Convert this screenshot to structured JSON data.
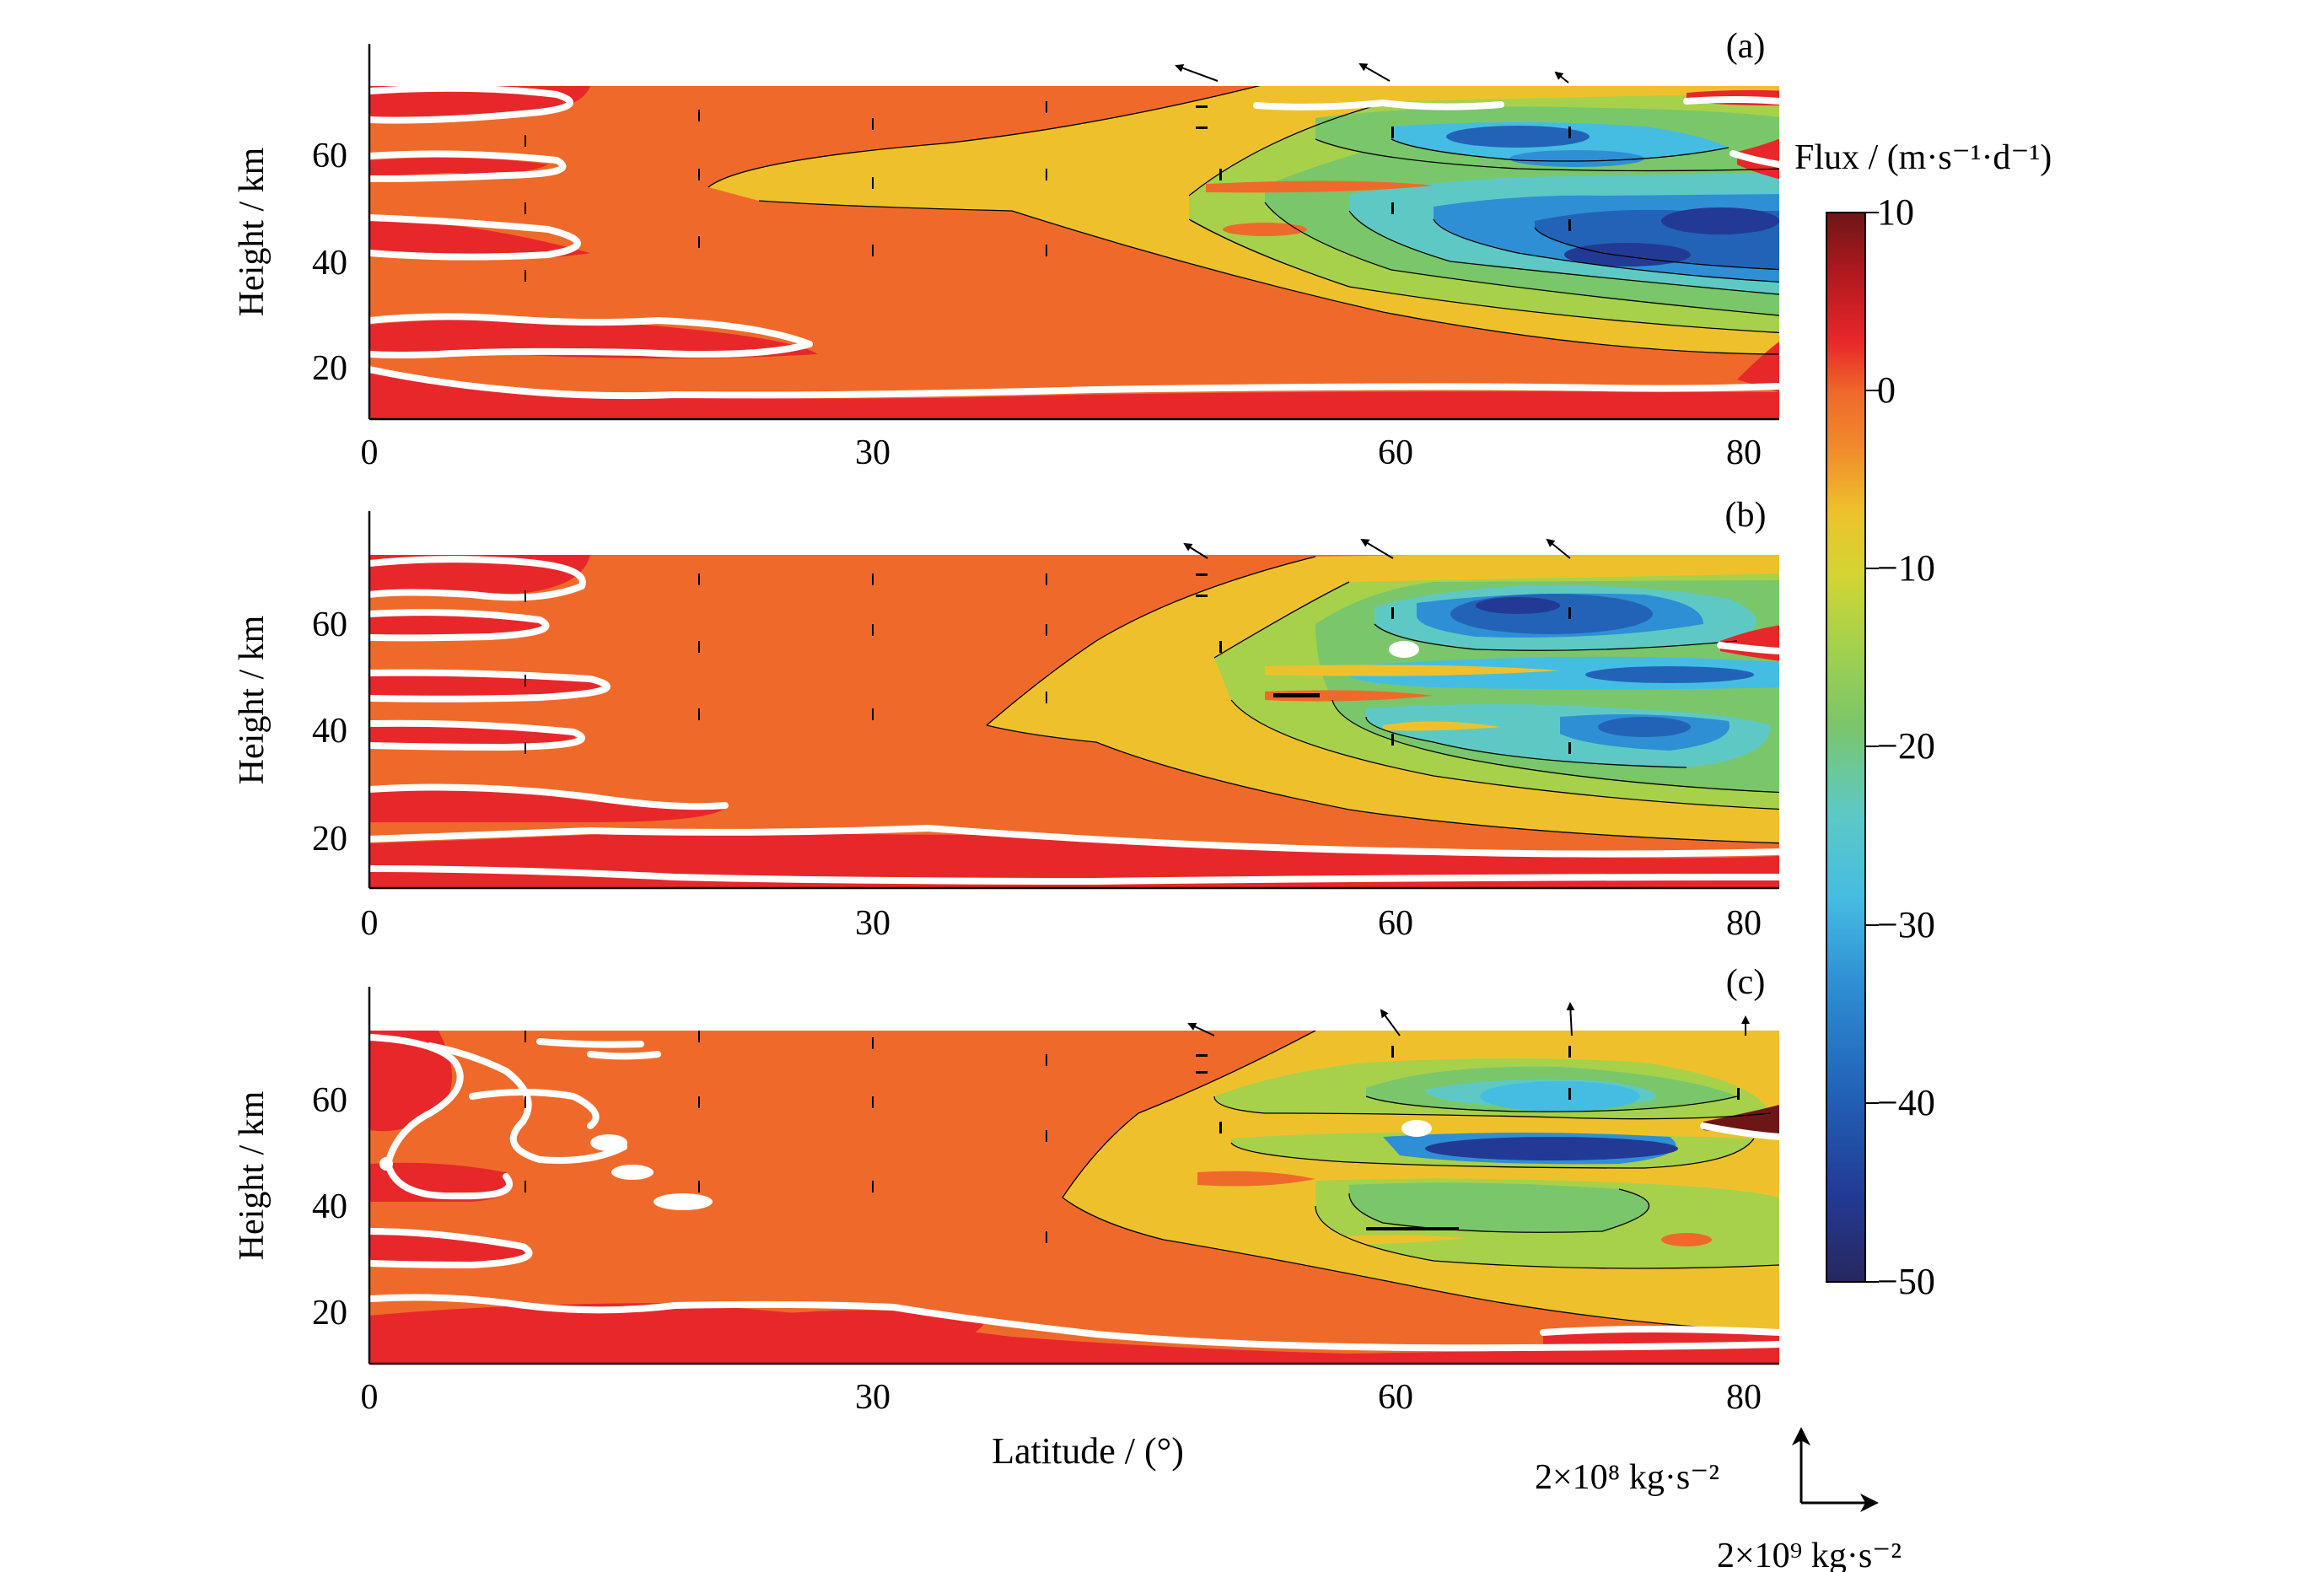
{
  "chart_data": {
    "type": "heatmap",
    "subtype": "filled-contour with vector overlay",
    "panels": [
      {
        "label": "(a)",
        "ylabel": "Height / km",
        "xlim": [
          0,
          81
        ],
        "ylim": [
          10,
          73
        ],
        "xticks": [
          0,
          30,
          60,
          80
        ],
        "yticks": [
          20,
          40,
          60
        ],
        "zero_contour": "white",
        "minima": [
          {
            "lat": 72,
            "height": 45,
            "flux": -48
          },
          {
            "lat": 71,
            "height": 41,
            "flux": -48
          },
          {
            "lat": 68,
            "height": 62,
            "flux": -38
          }
        ],
        "vectors": [
          {
            "lat": 48,
            "height": 75,
            "dir": "up-left"
          },
          {
            "lat": 58,
            "height": 75,
            "dir": "up-left"
          },
          {
            "lat": 68,
            "height": 75,
            "dir": "up-left"
          }
        ]
      },
      {
        "label": "(b)",
        "ylabel": "Height / km",
        "xlim": [
          0,
          81
        ],
        "ylim": [
          10,
          73
        ],
        "xticks": [
          0,
          30,
          60,
          80
        ],
        "yticks": [
          20,
          40,
          60
        ],
        "zero_contour": "white",
        "minima": [
          {
            "lat": 68,
            "height": 62,
            "flux": -44
          },
          {
            "lat": 72,
            "height": 48,
            "flux": -46
          },
          {
            "lat": 73,
            "height": 40,
            "flux": -40
          }
        ],
        "vectors": [
          {
            "lat": 48,
            "height": 75,
            "dir": "up-left"
          },
          {
            "lat": 58,
            "height": 75,
            "dir": "up-left"
          },
          {
            "lat": 68,
            "height": 75,
            "dir": "up-left"
          }
        ]
      },
      {
        "label": "(c)",
        "ylabel": "Height / km",
        "xlabel": "Latitude / (°)",
        "xlim": [
          0,
          81
        ],
        "ylim": [
          10,
          73
        ],
        "xticks": [
          0,
          30,
          60,
          80
        ],
        "yticks": [
          20,
          40,
          60
        ],
        "zero_contour": "white",
        "minima": [
          {
            "lat": 69,
            "height": 49,
            "flux": -42
          },
          {
            "lat": 69,
            "height": 59,
            "flux": -30
          }
        ],
        "vectors": [
          {
            "lat": 59,
            "height": 76,
            "dir": "up-left"
          },
          {
            "lat": 69,
            "height": 76,
            "dir": "up"
          },
          {
            "lat": 79,
            "height": 75,
            "dir": "up"
          }
        ]
      }
    ],
    "colorbar": {
      "label": "Flux / (m·s⁻¹·d⁻¹)",
      "range": [
        -50,
        10
      ],
      "ticks": [
        "10",
        "0",
        "−10",
        "−20",
        "−30",
        "−40",
        "−50"
      ],
      "tick_values": [
        10,
        0,
        -10,
        -20,
        -30,
        -40,
        -50
      ],
      "colors": [
        "#27275e",
        "#223a94",
        "#2263b8",
        "#2f8fd4",
        "#45bde2",
        "#5ec9c4",
        "#7ac66a",
        "#a7d14b",
        "#d2d533",
        "#eec12c",
        "#f08a2c",
        "#ef6a2a",
        "#e8272a",
        "#b3191e",
        "#6e1616"
      ]
    },
    "vector_key": {
      "vertical": "2×10⁸ kg·s⁻²",
      "horizontal": "2×10⁹ kg·s⁻²"
    }
  }
}
